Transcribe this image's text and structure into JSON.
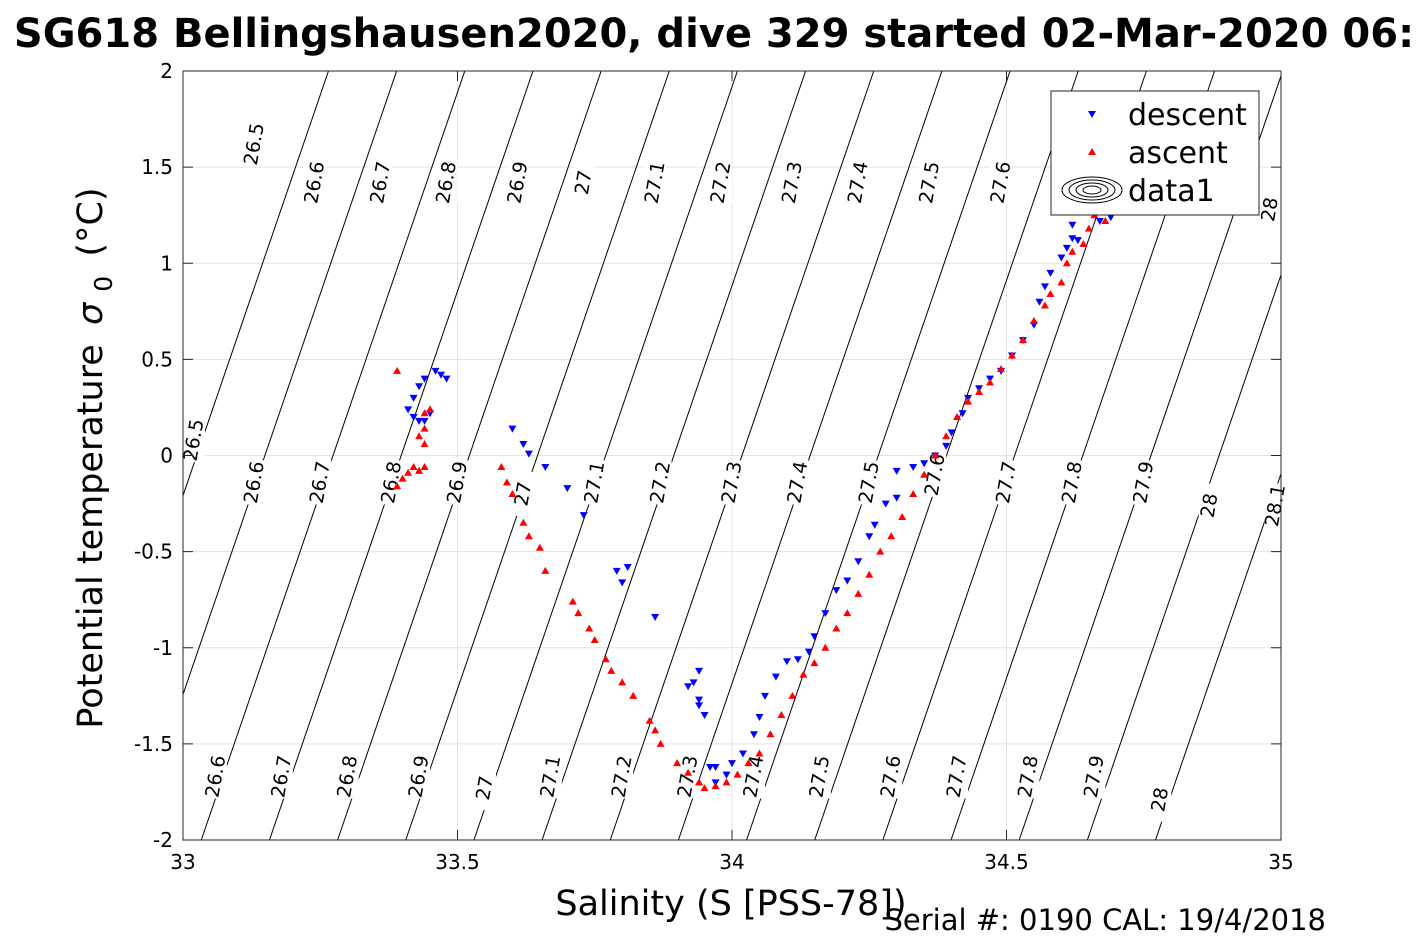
{
  "chart_data": {
    "type": "scatter",
    "title": "SG618 Bellingshausen2020, dive 329 started 02-Mar-2020 06:",
    "xlabel": "Salinity (S [PSS-78])",
    "ylabel": "Potential temperature",
    "ylabel_sym": "σ",
    "ylabel_sub": "0",
    "ylabel_unit": "(°C)",
    "footer": "Serial #: 0190  CAL: 19/4/2018",
    "xlim": [
      33,
      35
    ],
    "ylim": [
      -2,
      2
    ],
    "xticks": [
      33,
      33.5,
      34,
      34.5,
      35
    ],
    "xtick_labels": [
      "33",
      "33.5",
      "34",
      "34.5",
      "35"
    ],
    "yticks": [
      -2,
      -1.5,
      -1,
      -0.5,
      0,
      0.5,
      1,
      1.5,
      2
    ],
    "ytick_labels": [
      "-2",
      "-1.5",
      "-1",
      "-0.5",
      "0",
      "0.5",
      "1",
      "1.5",
      "2"
    ],
    "grid": true,
    "legend_position": "top-right",
    "legend": [
      {
        "label": "descent",
        "marker": "triangle-down",
        "color": "#0000ff"
      },
      {
        "label": "ascent",
        "marker": "triangle-up",
        "color": "#ff0000"
      },
      {
        "label": "data1",
        "marker": "contour"
      }
    ],
    "contour_levels": [
      26.5,
      26.6,
      26.7,
      26.8,
      26.9,
      27,
      27.1,
      27.2,
      27.3,
      27.4,
      27.5,
      27.6,
      27.7,
      27.8,
      27.9,
      28,
      28.1
    ],
    "contour_labels_top": [
      {
        "level": "26.5",
        "s": 33.13,
        "t": 1.62
      },
      {
        "level": "26.6",
        "s": 33.24,
        "t": 1.42
      },
      {
        "level": "26.7",
        "s": 33.36,
        "t": 1.42
      },
      {
        "level": "26.8",
        "s": 33.48,
        "t": 1.42
      },
      {
        "level": "26.9",
        "s": 33.61,
        "t": 1.42
      },
      {
        "level": "27",
        "s": 33.73,
        "t": 1.42
      },
      {
        "level": "27.1",
        "s": 33.86,
        "t": 1.42
      },
      {
        "level": "27.2",
        "s": 33.98,
        "t": 1.42
      },
      {
        "level": "27.3",
        "s": 34.11,
        "t": 1.42
      },
      {
        "level": "27.4",
        "s": 34.23,
        "t": 1.42
      },
      {
        "level": "27.5",
        "s": 34.36,
        "t": 1.42
      },
      {
        "level": "27.6",
        "s": 34.49,
        "t": 1.42
      },
      {
        "level": "28",
        "s": 34.98,
        "t": 1.28
      }
    ],
    "contour_labels_mid": [
      {
        "level": "26.5",
        "s": 33.02,
        "t": 0.08
      },
      {
        "level": "26.6",
        "s": 33.13,
        "t": -0.14
      },
      {
        "level": "26.7",
        "s": 33.25,
        "t": -0.14
      },
      {
        "level": "26.8",
        "s": 33.38,
        "t": -0.14
      },
      {
        "level": "26.9",
        "s": 33.5,
        "t": -0.14
      },
      {
        "level": "27",
        "s": 33.62,
        "t": -0.2
      },
      {
        "level": "27.1",
        "s": 33.75,
        "t": -0.14
      },
      {
        "level": "27.2",
        "s": 33.87,
        "t": -0.14
      },
      {
        "level": "27.3",
        "s": 34,
        "t": -0.14
      },
      {
        "level": "27.4",
        "s": 34.12,
        "t": -0.14
      },
      {
        "level": "27.5",
        "s": 34.25,
        "t": -0.14
      },
      {
        "level": "27.6",
        "s": 34.37,
        "t": -0.1
      },
      {
        "level": "27.7",
        "s": 34.5,
        "t": -0.14
      },
      {
        "level": "27.8",
        "s": 34.62,
        "t": -0.14
      },
      {
        "level": "27.9",
        "s": 34.75,
        "t": -0.14
      },
      {
        "level": "28",
        "s": 34.87,
        "t": -0.26
      },
      {
        "level": "28.1",
        "s": 34.99,
        "t": -0.26
      }
    ],
    "contour_labels_bottom": [
      {
        "level": "26.6",
        "s": 33.06,
        "t": -1.67
      },
      {
        "level": "26.7",
        "s": 33.18,
        "t": -1.67
      },
      {
        "level": "26.8",
        "s": 33.3,
        "t": -1.67
      },
      {
        "level": "26.9",
        "s": 33.43,
        "t": -1.67
      },
      {
        "level": "27",
        "s": 33.55,
        "t": -1.73
      },
      {
        "level": "27.1",
        "s": 33.67,
        "t": -1.67
      },
      {
        "level": "27.2",
        "s": 33.8,
        "t": -1.67
      },
      {
        "level": "27.3",
        "s": 33.92,
        "t": -1.67
      },
      {
        "level": "27.4",
        "s": 34.04,
        "t": -1.67
      },
      {
        "level": "27.5",
        "s": 34.16,
        "t": -1.67
      },
      {
        "level": "27.6",
        "s": 34.29,
        "t": -1.67
      },
      {
        "level": "27.7",
        "s": 34.41,
        "t": -1.67
      },
      {
        "level": "27.8",
        "s": 34.54,
        "t": -1.67
      },
      {
        "level": "27.9",
        "s": 34.66,
        "t": -1.67
      },
      {
        "level": "28",
        "s": 34.78,
        "t": -1.79
      }
    ],
    "series": [
      {
        "name": "descent",
        "color": "#0000ff",
        "marker": "triangle-down",
        "points": [
          [
            33.41,
            0.24
          ],
          [
            33.42,
            0.2
          ],
          [
            33.43,
            0.18
          ],
          [
            33.42,
            0.3
          ],
          [
            33.43,
            0.36
          ],
          [
            33.44,
            0.4
          ],
          [
            33.45,
            0.22
          ],
          [
            33.46,
            0.44
          ],
          [
            33.47,
            0.42
          ],
          [
            33.48,
            0.4
          ],
          [
            33.44,
            0.18
          ],
          [
            33.6,
            0.14
          ],
          [
            33.62,
            0.06
          ],
          [
            33.63,
            0.01
          ],
          [
            33.66,
            -0.06
          ],
          [
            33.7,
            -0.17
          ],
          [
            33.73,
            -0.31
          ],
          [
            33.79,
            -0.6
          ],
          [
            33.81,
            -0.58
          ],
          [
            33.8,
            -0.66
          ],
          [
            33.86,
            -0.84
          ],
          [
            33.92,
            -1.2
          ],
          [
            33.93,
            -1.18
          ],
          [
            33.94,
            -1.12
          ],
          [
            33.94,
            -1.27
          ],
          [
            33.94,
            -1.3
          ],
          [
            33.95,
            -1.35
          ],
          [
            33.96,
            -1.62
          ],
          [
            33.97,
            -1.7
          ],
          [
            33.97,
            -1.62
          ],
          [
            33.99,
            -1.66
          ],
          [
            34.0,
            -1.6
          ],
          [
            34.02,
            -1.55
          ],
          [
            34.04,
            -1.45
          ],
          [
            34.05,
            -1.36
          ],
          [
            34.06,
            -1.25
          ],
          [
            34.08,
            -1.15
          ],
          [
            34.1,
            -1.07
          ],
          [
            34.12,
            -1.06
          ],
          [
            34.14,
            -1.02
          ],
          [
            34.15,
            -0.94
          ],
          [
            34.17,
            -0.82
          ],
          [
            34.19,
            -0.7
          ],
          [
            34.21,
            -0.65
          ],
          [
            34.23,
            -0.55
          ],
          [
            34.25,
            -0.42
          ],
          [
            34.26,
            -0.36
          ],
          [
            34.28,
            -0.25
          ],
          [
            34.3,
            -0.22
          ],
          [
            34.3,
            -0.08
          ],
          [
            34.33,
            -0.06
          ],
          [
            34.35,
            -0.04
          ],
          [
            34.37,
            0.0
          ],
          [
            34.39,
            0.05
          ],
          [
            34.4,
            0.12
          ],
          [
            34.42,
            0.22
          ],
          [
            34.43,
            0.3
          ],
          [
            34.45,
            0.35
          ],
          [
            34.47,
            0.4
          ],
          [
            34.49,
            0.44
          ],
          [
            34.51,
            0.52
          ],
          [
            34.53,
            0.6
          ],
          [
            34.55,
            0.68
          ],
          [
            34.56,
            0.8
          ],
          [
            34.57,
            0.88
          ],
          [
            34.58,
            0.95
          ],
          [
            34.6,
            1.03
          ],
          [
            34.61,
            1.08
          ],
          [
            34.62,
            1.13
          ],
          [
            34.63,
            1.12
          ],
          [
            34.62,
            1.2
          ],
          [
            34.61,
            1.3
          ],
          [
            34.67,
            1.22
          ],
          [
            34.69,
            1.24
          ]
        ]
      },
      {
        "name": "ascent",
        "color": "#ff0000",
        "marker": "triangle-up",
        "points": [
          [
            33.39,
            0.44
          ],
          [
            33.4,
            -0.12
          ],
          [
            33.41,
            -0.09
          ],
          [
            33.39,
            -0.16
          ],
          [
            33.42,
            -0.06
          ],
          [
            33.43,
            0.1
          ],
          [
            33.44,
            0.22
          ],
          [
            33.45,
            0.24
          ],
          [
            33.44,
            0.06
          ],
          [
            33.44,
            0.14
          ],
          [
            33.44,
            -0.06
          ],
          [
            33.43,
            -0.08
          ],
          [
            33.58,
            -0.06
          ],
          [
            33.59,
            -0.14
          ],
          [
            33.6,
            -0.2
          ],
          [
            33.62,
            -0.35
          ],
          [
            33.63,
            -0.42
          ],
          [
            33.65,
            -0.48
          ],
          [
            33.66,
            -0.6
          ],
          [
            33.71,
            -0.76
          ],
          [
            33.72,
            -0.82
          ],
          [
            33.74,
            -0.9
          ],
          [
            33.75,
            -0.96
          ],
          [
            33.77,
            -1.06
          ],
          [
            33.78,
            -1.12
          ],
          [
            33.8,
            -1.18
          ],
          [
            33.82,
            -1.25
          ],
          [
            33.85,
            -1.38
          ],
          [
            33.86,
            -1.43
          ],
          [
            33.87,
            -1.5
          ],
          [
            33.9,
            -1.6
          ],
          [
            33.92,
            -1.65
          ],
          [
            33.94,
            -1.7
          ],
          [
            33.95,
            -1.73
          ],
          [
            33.97,
            -1.72
          ],
          [
            33.99,
            -1.7
          ],
          [
            34.01,
            -1.66
          ],
          [
            34.03,
            -1.6
          ],
          [
            34.05,
            -1.55
          ],
          [
            34.07,
            -1.45
          ],
          [
            34.09,
            -1.35
          ],
          [
            34.11,
            -1.25
          ],
          [
            34.13,
            -1.14
          ],
          [
            34.15,
            -1.08
          ],
          [
            34.17,
            -1.0
          ],
          [
            34.19,
            -0.9
          ],
          [
            34.21,
            -0.82
          ],
          [
            34.23,
            -0.72
          ],
          [
            34.25,
            -0.62
          ],
          [
            34.27,
            -0.5
          ],
          [
            34.29,
            -0.42
          ],
          [
            34.31,
            -0.32
          ],
          [
            34.33,
            -0.2
          ],
          [
            34.35,
            -0.1
          ],
          [
            34.37,
            0.0
          ],
          [
            34.39,
            0.1
          ],
          [
            34.41,
            0.2
          ],
          [
            34.43,
            0.28
          ],
          [
            34.45,
            0.33
          ],
          [
            34.47,
            0.38
          ],
          [
            34.49,
            0.45
          ],
          [
            34.51,
            0.52
          ],
          [
            34.53,
            0.6
          ],
          [
            34.55,
            0.7
          ],
          [
            34.57,
            0.78
          ],
          [
            34.58,
            0.84
          ],
          [
            34.6,
            0.9
          ],
          [
            34.61,
            1.0
          ],
          [
            34.62,
            1.06
          ],
          [
            34.64,
            1.1
          ],
          [
            34.65,
            1.18
          ],
          [
            34.66,
            1.25
          ],
          [
            34.68,
            1.22
          ]
        ]
      }
    ]
  }
}
